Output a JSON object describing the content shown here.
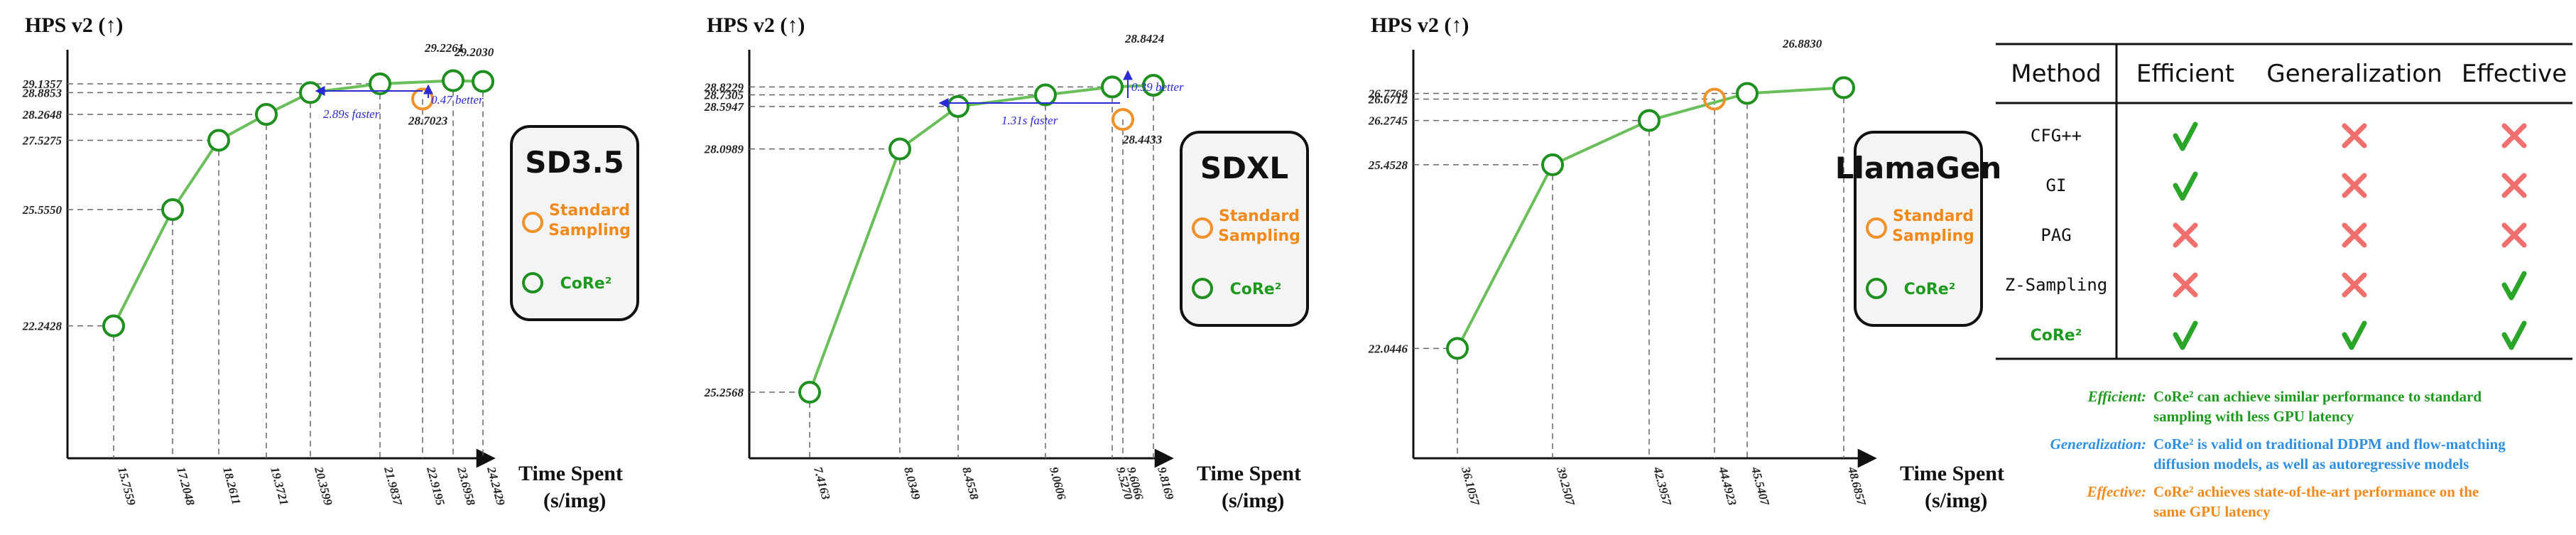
{
  "chart_data": [
    {
      "type": "line",
      "title": "HPS v2 (↑)",
      "xlabel_line1": "Time Spent",
      "xlabel_line2": "(s/img)",
      "legend": {
        "title": "SD3.5",
        "standard": "Standard Sampling",
        "core": "CoRe²",
        "placement": "right"
      },
      "series": [
        {
          "name": "CoRe²",
          "color": "#6abf5b",
          "x": [
            "15.7559",
            "17.2048",
            "18.2611",
            "19.3721",
            "20.3599",
            "21.9837",
            "23.6958",
            "24.2429"
          ],
          "y": [
            22.2428,
            25.555,
            27.5275,
            28.2648,
            28.8853,
            29.1357,
            29.2261,
            29.203
          ],
          "y_labels": [
            "22.2428",
            "25.5550",
            "27.5275",
            "28.2648",
            "28.8853",
            "29.1357",
            "29.2261",
            "29.2030"
          ]
        },
        {
          "name": "Standard Sampling",
          "color": "#f0922b",
          "x": [
            "22.9195"
          ],
          "y": [
            28.7023
          ],
          "y_labels": [
            "28.7023"
          ]
        }
      ],
      "annotations": {
        "faster": "2.89s faster",
        "better": "0.47 better"
      },
      "xticks": [
        "15.7559",
        "17.2048",
        "18.2611",
        "19.3721",
        "20.3599",
        "21.9837",
        "22.9195",
        "23.6958",
        "24.2429"
      ],
      "yticks": [
        "22.2428",
        "25.5550",
        "27.5275",
        "28.2648",
        "28.8853",
        "29.1357"
      ],
      "top_labels": [
        "29.2261",
        "29.2030"
      ],
      "grid": false
    },
    {
      "type": "line",
      "title": "HPS v2 (↑)",
      "xlabel_line1": "Time Spent",
      "xlabel_line2": "(s/img)",
      "legend": {
        "title": "SDXL",
        "standard": "Standard Sampling",
        "core": "CoRe²",
        "placement": "right"
      },
      "series": [
        {
          "name": "CoRe²",
          "color": "#6abf5b",
          "x": [
            "7.4163",
            "8.0349",
            "8.4558",
            "9.0606",
            "9.5270",
            "9.8169"
          ],
          "y": [
            25.2568,
            28.0989,
            28.5947,
            28.7305,
            28.8229,
            28.8424
          ],
          "y_labels": [
            "25.2568",
            "28.0989",
            "28.5947",
            "28.7305",
            "28.8229",
            "28.8424"
          ]
        },
        {
          "name": "Standard Sampling",
          "color": "#f0922b",
          "x": [
            "9.6066"
          ],
          "y": [
            28.4433
          ],
          "y_labels": [
            "28.4433"
          ]
        }
      ],
      "annotations": {
        "faster": "1.31s faster",
        "better": "0.39 better"
      },
      "xticks": [
        "7.4163",
        "8.0349",
        "8.4558",
        "9.0606",
        "9.5270",
        "9.6066",
        "9.8169"
      ],
      "yticks": [
        "25.2568",
        "28.0989",
        "28.5947",
        "28.7305",
        "28.8229"
      ],
      "top_labels": [
        "28.8424"
      ],
      "grid": false
    },
    {
      "type": "line",
      "title": "HPS v2 (↑)",
      "xlabel_line1": "Time Spent",
      "xlabel_line2": "(s/img)",
      "legend": {
        "title": "LlamaGen",
        "standard": "Standard Sampling",
        "core": "CoRe²",
        "placement": "right"
      },
      "series": [
        {
          "name": "CoRe²",
          "color": "#6abf5b",
          "x": [
            "36.1057",
            "39.2507",
            "42.3957",
            "45.5407",
            "48.6857"
          ],
          "y": [
            22.0446,
            25.4528,
            26.2745,
            26.7768,
            26.883
          ],
          "y_labels": [
            "22.0446",
            "25.4528",
            "26.2745",
            "26.7768",
            "26.8830"
          ]
        },
        {
          "name": "Standard Sampling",
          "color": "#f0922b",
          "x": [
            "44.4923"
          ],
          "y": [
            26.6712
          ],
          "y_labels": [
            "26.6712"
          ]
        }
      ],
      "xticks": [
        "36.1057",
        "39.2507",
        "42.3957",
        "44.4923",
        "45.5407",
        "48.6857"
      ],
      "yticks": [
        "22.0446",
        "25.4528",
        "26.2745",
        "26.6712",
        "26.7768"
      ],
      "top_labels": [
        "26.8830"
      ],
      "grid": false
    },
    {
      "type": "table",
      "columns": [
        "Method",
        "Efficient",
        "Generalization",
        "Effective"
      ],
      "rows": [
        {
          "method": "CFG++",
          "values": [
            true,
            false,
            false
          ]
        },
        {
          "method": "GI",
          "values": [
            true,
            false,
            false
          ]
        },
        {
          "method": "PAG",
          "values": [
            false,
            false,
            false
          ]
        },
        {
          "method": "Z-Sampling",
          "values": [
            false,
            false,
            true
          ]
        },
        {
          "method": "CoRe²",
          "values": [
            true,
            true,
            true
          ]
        }
      ],
      "check_color": "#2aa52a",
      "cross_color": "#f07070"
    }
  ],
  "notes": [
    {
      "label": "Efficient:",
      "color": "#1e9a1e",
      "line1": "CoRe² can achieve similar performance to standard",
      "line2": "sampling with less GPU latency"
    },
    {
      "label": "Generalization:",
      "color": "#2f8fe0",
      "line1": "CoRe² is valid on traditional DDPM and flow-matching",
      "line2": "diffusion models, as well as autoregressive models"
    },
    {
      "label": "Effective:",
      "color": "#f08a1c",
      "line1": "CoRe² achieves state-of-the-art performance on the",
      "line2": "same GPU latency"
    }
  ]
}
